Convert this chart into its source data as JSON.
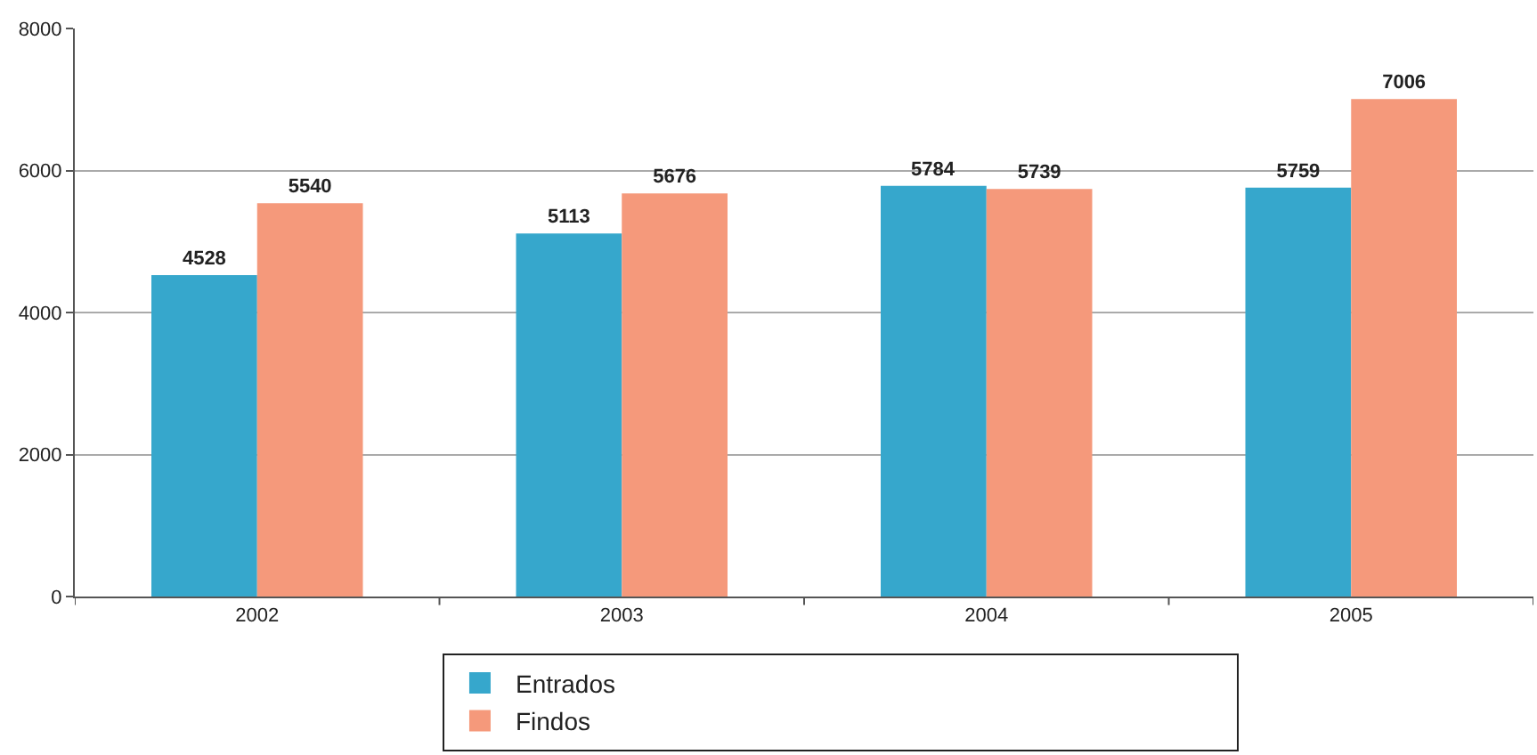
{
  "chart_data": {
    "type": "bar",
    "categories": [
      "2002",
      "2003",
      "2004",
      "2005"
    ],
    "series": [
      {
        "name": "Entrados",
        "color": "#36a7cc",
        "values": [
          4528,
          5113,
          5784,
          5759
        ]
      },
      {
        "name": "Findos",
        "color": "#f5997b",
        "values": [
          5540,
          5676,
          5739,
          7006
        ]
      }
    ],
    "ylim": [
      0,
      8000
    ],
    "yticks": [
      0,
      2000,
      4000,
      6000,
      8000
    ],
    "grid": "y",
    "legend": "bottom",
    "data_labels": true
  }
}
